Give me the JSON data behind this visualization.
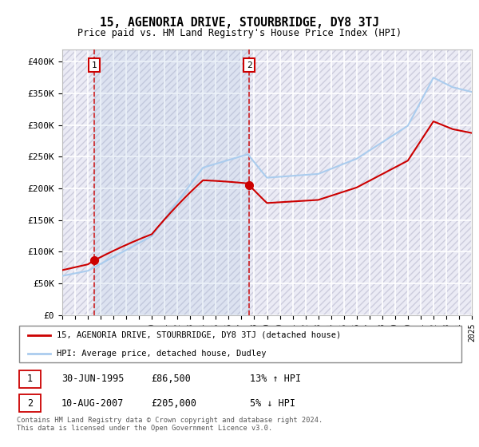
{
  "title": "15, AGENORIA DRIVE, STOURBRIDGE, DY8 3TJ",
  "subtitle": "Price paid vs. HM Land Registry's House Price Index (HPI)",
  "ylim": [
    0,
    420000
  ],
  "yticks": [
    0,
    50000,
    100000,
    150000,
    200000,
    250000,
    300000,
    350000,
    400000
  ],
  "ytick_labels": [
    "£0",
    "£50K",
    "£100K",
    "£150K",
    "£200K",
    "£250K",
    "£300K",
    "£350K",
    "£400K"
  ],
  "hpi_color": "#aaccee",
  "price_color": "#cc0000",
  "transaction1_date": 1995.5,
  "transaction1_price": 86500,
  "transaction2_date": 2007.61,
  "transaction2_price": 205000,
  "legend_label1": "15, AGENORIA DRIVE, STOURBRIDGE, DY8 3TJ (detached house)",
  "legend_label2": "HPI: Average price, detached house, Dudley",
  "table_row1": [
    "1",
    "30-JUN-1995",
    "£86,500",
    "13% ↑ HPI"
  ],
  "table_row2": [
    "2",
    "10-AUG-2007",
    "£205,000",
    "5% ↓ HPI"
  ],
  "footnote": "Contains HM Land Registry data © Crown copyright and database right 2024.\nThis data is licensed under the Open Government Licence v3.0.",
  "xmin": 1993,
  "xmax": 2025
}
